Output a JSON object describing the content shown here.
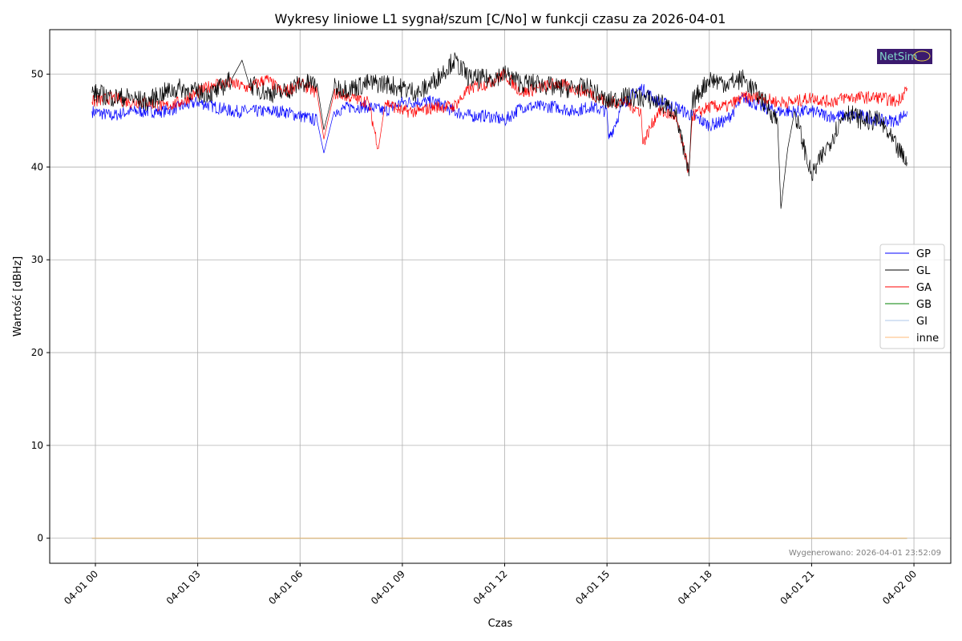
{
  "chart_data": {
    "type": "line",
    "title": "Wykresy liniowe L1 sygnał/szum [C/No] w funkcji czasu za 2026-04-01",
    "xlabel": "Czas",
    "ylabel": "Wartość [dBHz]",
    "x_unit": "hours since 2026-04-01 00:00",
    "xlim": [
      -1.34,
      25.08
    ],
    "ylim": [
      -2.7,
      54.8
    ],
    "grid": true,
    "legend_position": "center-right",
    "xticks": [
      {
        "value": 0,
        "label": "04-01 00"
      },
      {
        "value": 3,
        "label": "04-01 03"
      },
      {
        "value": 6,
        "label": "04-01 06"
      },
      {
        "value": 9,
        "label": "04-01 09"
      },
      {
        "value": 12,
        "label": "04-01 12"
      },
      {
        "value": 15,
        "label": "04-01 15"
      },
      {
        "value": 18,
        "label": "04-01 18"
      },
      {
        "value": 21,
        "label": "04-01 21"
      },
      {
        "value": 24,
        "label": "04-02 00"
      }
    ],
    "yticks": [
      0,
      10,
      20,
      30,
      40,
      50
    ],
    "series": [
      {
        "name": "GP",
        "color": "#0000ff",
        "x": [
          -0.1,
          0.5,
          1,
          1.5,
          2,
          2.5,
          3,
          3.5,
          4,
          4.5,
          5,
          5.5,
          6,
          6.5,
          6.7,
          7,
          7.5,
          8,
          8.5,
          9,
          9.5,
          10,
          10.5,
          11,
          11.5,
          12,
          12.5,
          13,
          13.5,
          14,
          14.5,
          15,
          15.05,
          15.5,
          16,
          16.5,
          17,
          17.5,
          18,
          18.5,
          19,
          19.5,
          20,
          20.5,
          21,
          21.5,
          22,
          22.5,
          23,
          23.5,
          23.8
        ],
        "y": [
          46,
          45.5,
          46,
          46,
          46,
          46.5,
          47,
          46.5,
          46,
          46,
          46,
          46,
          45.5,
          45,
          41.5,
          46,
          46.5,
          46.5,
          46,
          47,
          47,
          47,
          46,
          45.5,
          45.5,
          45,
          46.5,
          46.5,
          46.5,
          46,
          46.5,
          46,
          43,
          47,
          48.5,
          47,
          46.5,
          45.5,
          44.5,
          45,
          47.5,
          46.5,
          46,
          46,
          46,
          45.5,
          45.5,
          45.5,
          45,
          45,
          46
        ]
      },
      {
        "name": "GL",
        "color": "#000000",
        "x": [
          -0.1,
          0.5,
          1,
          1.5,
          2,
          2.5,
          3,
          3.5,
          4,
          4.3,
          4.5,
          5,
          5.5,
          6,
          6.5,
          6.7,
          7,
          7.5,
          8,
          8.5,
          9,
          9.5,
          10,
          10.5,
          11,
          11.5,
          12,
          12.5,
          13,
          13.5,
          14,
          14.5,
          15,
          15.5,
          16,
          16.5,
          17,
          17.4,
          17.5,
          18,
          18.5,
          19,
          19.5,
          20,
          20.1,
          20.3,
          20.5,
          21,
          21.5,
          22,
          22.5,
          23,
          23.5,
          23.8
        ],
        "y": [
          48,
          47.5,
          47.5,
          47,
          48,
          48.5,
          48,
          48,
          49.5,
          51.5,
          49,
          48,
          48,
          49,
          49,
          44,
          48.5,
          48.5,
          49,
          49,
          48.5,
          48,
          49.5,
          51.5,
          49.5,
          49.5,
          50,
          49,
          49,
          48.5,
          48.5,
          48.5,
          47,
          47.5,
          47.5,
          47,
          46,
          39,
          47,
          49.5,
          49,
          49.5,
          47.5,
          45,
          35.5,
          42,
          46,
          39,
          42.5,
          46,
          45,
          45,
          42,
          40.5
        ]
      },
      {
        "name": "GA",
        "color": "#ff0000",
        "x": [
          -0.1,
          0.5,
          1,
          1.5,
          2,
          2.5,
          3,
          3.5,
          4,
          4.5,
          5,
          5.5,
          6,
          6.5,
          6.7,
          7,
          7.5,
          8,
          8.3,
          8.5,
          9,
          9.5,
          10,
          10.5,
          11,
          11.5,
          12,
          12.5,
          13,
          13.5,
          14,
          14.5,
          15,
          15.5,
          16,
          16.05,
          16.5,
          17,
          17.4,
          17.5,
          18,
          18.5,
          19,
          19.5,
          20,
          20.5,
          21,
          21.5,
          22,
          22.5,
          23,
          23.5,
          23.8
        ],
        "y": [
          47,
          47.5,
          47,
          47,
          46.5,
          47,
          48,
          49,
          49,
          48.5,
          49.5,
          48,
          49,
          48,
          43,
          48,
          47.5,
          47,
          42,
          47,
          46,
          46,
          46.5,
          46.5,
          48.5,
          49,
          50,
          48,
          48.5,
          49,
          48.5,
          48,
          47,
          47,
          46,
          42.5,
          46,
          45.5,
          39.5,
          45.5,
          46.5,
          46.5,
          47.5,
          47.5,
          47,
          47,
          47.5,
          47,
          47.5,
          47.5,
          47.5,
          47,
          48.5
        ]
      },
      {
        "name": "GB",
        "color": "#008000",
        "x": [
          -0.1,
          23.8
        ],
        "y": [
          0,
          0
        ]
      },
      {
        "name": "GI",
        "color": "#aec7e8",
        "x": [
          -0.1,
          23.8
        ],
        "y": [
          0,
          0
        ]
      },
      {
        "name": "inne",
        "color": "#ffbb78",
        "x": [
          -0.1,
          23.8
        ],
        "y": [
          0,
          0
        ]
      }
    ],
    "annotation": "Wygenerowano: 2026-04-01 23:52:09"
  },
  "logo": {
    "text": "NetSim",
    "bg": "#3b1a6e",
    "fg": "#7fd6c8"
  }
}
